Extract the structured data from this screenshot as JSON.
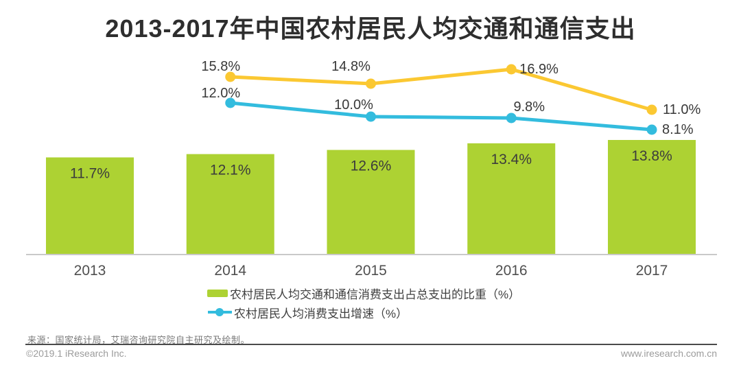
{
  "chart_data": {
    "type": "combo",
    "title": "2013-2017年中国农村居民人均交通和通信支出",
    "categories": [
      "2013",
      "2014",
      "2015",
      "2016",
      "2017"
    ],
    "series": [
      {
        "name": "农村居民人均交通和通信消费支出占总支出的比重（%）",
        "type": "bar",
        "color": "#ADD233",
        "categories": [
          "2013",
          "2014",
          "2015",
          "2016",
          "2017"
        ],
        "values": [
          11.7,
          12.1,
          12.6,
          13.4,
          13.8
        ],
        "labels": [
          "11.7%",
          "12.1%",
          "12.6%",
          "13.4%",
          "13.8%"
        ],
        "in_legend": true
      },
      {
        "name": "农村居民人均消费支出增速（%）",
        "type": "line",
        "color": "#33BCDE",
        "categories": [
          "2014",
          "2015",
          "2016",
          "2017"
        ],
        "values": [
          12.0,
          10.0,
          9.8,
          8.1
        ],
        "labels": [
          "12.0%",
          "10.0%",
          "9.8%",
          "8.1%"
        ],
        "in_legend": true,
        "label_pos": [
          {
            "dx": -14,
            "dy": -8,
            "anchor": "middle"
          },
          {
            "dx": -25,
            "dy": -11,
            "anchor": "middle"
          },
          {
            "dx": 26,
            "dy": -10,
            "anchor": "middle"
          },
          {
            "dx": 15,
            "dy": 6,
            "anchor": "start"
          }
        ]
      },
      {
        "name": "",
        "type": "line",
        "color": "#FBC832",
        "categories": [
          "2014",
          "2015",
          "2016",
          "2017"
        ],
        "values": [
          15.8,
          14.8,
          16.9,
          11.0
        ],
        "labels": [
          "15.8%",
          "14.8%",
          "16.9%",
          "11.0%"
        ],
        "in_legend": false,
        "label_pos": [
          {
            "dx": -14,
            "dy": -9,
            "anchor": "middle"
          },
          {
            "dx": -29,
            "dy": -19,
            "anchor": "middle"
          },
          {
            "dx": 12,
            "dy": 6,
            "anchor": "start"
          },
          {
            "dx": 16,
            "dy": 6,
            "anchor": "start"
          }
        ]
      }
    ],
    "legend": [
      {
        "swatch": "bar",
        "color": "#ADD233",
        "label": "农村居民人均交通和通信消费支出占总支出的比重（%）"
      },
      {
        "swatch": "line-dot",
        "color": "#33BCDE",
        "label": "农村居民人均消费支出增速（%）"
      }
    ],
    "legend_position": "bottom",
    "axes": {
      "y_axis_visible": false,
      "gridlines": false,
      "x_baseline_visible": true,
      "bar_axis_range": [
        0,
        30.7
      ],
      "line_axis_range_implied": true
    }
  },
  "footer": {
    "source": "来源：国家统计局，艾瑞咨询研究院自主研究及绘制。",
    "copyright": "©2019.1 iResearch Inc.",
    "website": "www.iresearch.com.cn"
  },
  "colors": {
    "bar_green": "#ADD233",
    "line_blue": "#33BCDE",
    "line_yellow": "#FBC832",
    "title_text": "#2e2e2e",
    "axis_line": "#c9c9c9",
    "footer_rule": "#4a4a4a"
  }
}
